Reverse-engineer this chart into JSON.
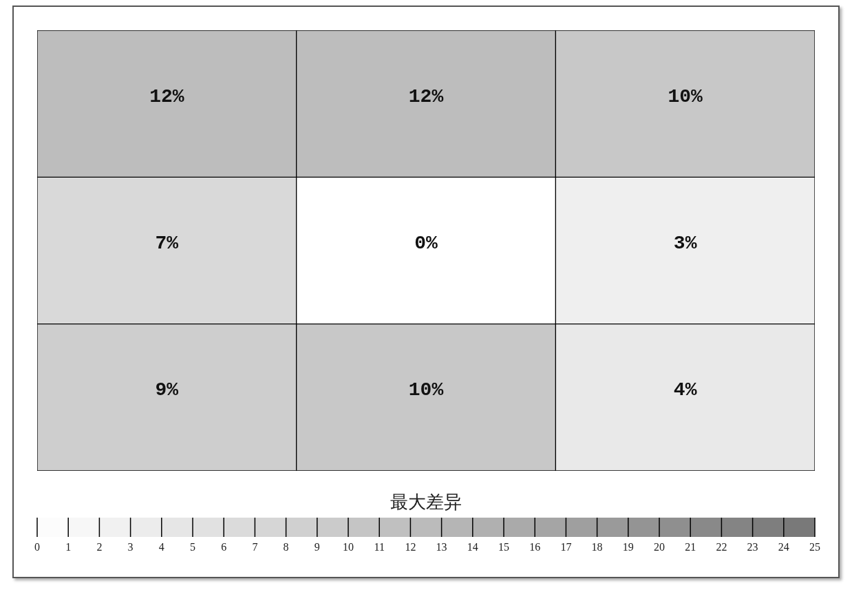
{
  "chart_data": {
    "type": "heatmap",
    "categories": [
      null,
      null,
      null
    ],
    "y_categories": [
      null,
      null,
      null
    ],
    "cells": [
      [
        12,
        12,
        10
      ],
      [
        7,
        0,
        3
      ],
      [
        9,
        10,
        4
      ]
    ],
    "cell_labels": [
      [
        "12%",
        "12%",
        "10%"
      ],
      [
        "7%",
        "0%",
        "3%"
      ],
      [
        "9%",
        "10%",
        "4%"
      ]
    ],
    "clabel": "最大差异",
    "clim": [
      0,
      25
    ],
    "cticks": [
      0,
      1,
      2,
      3,
      4,
      5,
      6,
      7,
      8,
      9,
      10,
      11,
      12,
      13,
      14,
      15,
      16,
      17,
      18,
      19,
      20,
      21,
      22,
      23,
      24,
      25
    ]
  }
}
